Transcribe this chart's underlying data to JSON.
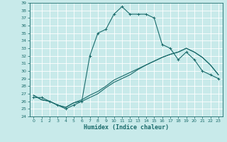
{
  "xlabel": "Humidex (Indice chaleur)",
  "bg_color": "#c8eaea",
  "grid_color": "#ffffff",
  "line_color": "#1a6b6b",
  "xlim": [
    -0.5,
    23.5
  ],
  "ylim": [
    24,
    39
  ],
  "xticks": [
    0,
    1,
    2,
    3,
    4,
    5,
    6,
    7,
    8,
    9,
    10,
    11,
    12,
    13,
    14,
    15,
    16,
    17,
    18,
    19,
    20,
    21,
    22,
    23
  ],
  "yticks": [
    24,
    25,
    26,
    27,
    28,
    29,
    30,
    31,
    32,
    33,
    34,
    35,
    36,
    37,
    38,
    39
  ],
  "curve1_x": [
    0,
    1,
    2,
    3,
    4,
    5,
    6,
    7,
    8,
    9,
    10,
    11,
    12,
    13,
    14,
    15,
    16,
    17,
    18,
    19,
    20,
    21,
    22,
    23
  ],
  "curve1_y": [
    26.5,
    26.5,
    26.0,
    25.5,
    25.0,
    25.5,
    26.0,
    32.0,
    35.0,
    35.5,
    37.5,
    38.5,
    37.5,
    37.5,
    37.5,
    37.0,
    33.5,
    33.0,
    31.5,
    32.5,
    31.5,
    30.0,
    29.5,
    29.0
  ],
  "curve2_x": [
    0,
    1,
    2,
    3,
    4,
    5,
    6,
    7,
    8,
    9,
    10,
    11,
    12,
    13,
    14,
    15,
    16,
    17,
    18,
    19,
    20,
    21,
    22,
    23
  ],
  "curve2_y": [
    26.8,
    26.2,
    26.0,
    25.5,
    25.2,
    25.8,
    26.0,
    26.5,
    27.0,
    27.8,
    28.5,
    29.0,
    29.5,
    30.2,
    30.8,
    31.3,
    31.8,
    32.2,
    32.5,
    33.0,
    32.5,
    31.8,
    30.8,
    29.5
  ],
  "curve3_x": [
    0,
    1,
    2,
    3,
    4,
    5,
    6,
    7,
    8,
    9,
    10,
    11,
    12,
    13,
    14,
    15,
    16,
    17,
    18,
    19,
    20,
    21,
    22,
    23
  ],
  "curve3_y": [
    26.8,
    26.2,
    26.0,
    25.5,
    25.2,
    25.8,
    26.2,
    26.8,
    27.3,
    28.0,
    28.8,
    29.3,
    29.8,
    30.3,
    30.8,
    31.3,
    31.8,
    32.2,
    32.5,
    33.0,
    32.5,
    31.8,
    30.8,
    29.5
  ],
  "xlabel_fontsize": 6,
  "tick_fontsize": 4.5,
  "linewidth": 0.8,
  "marker_size": 3
}
